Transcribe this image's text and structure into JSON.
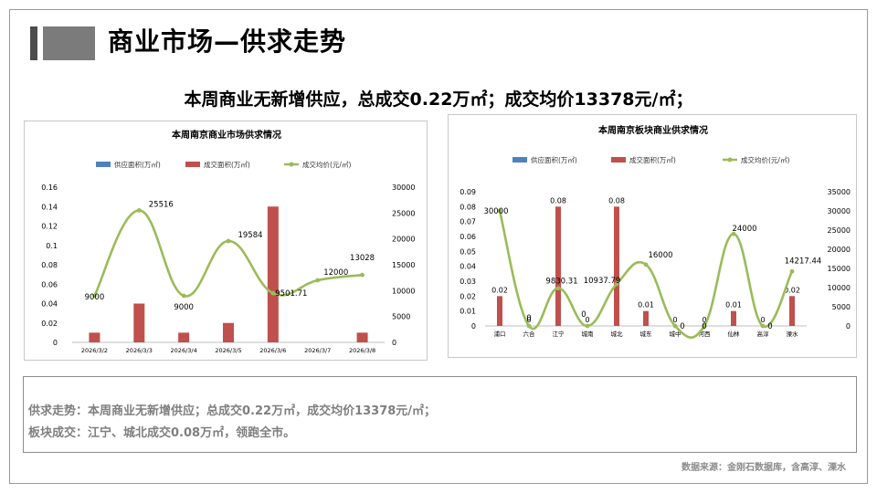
{
  "page": {
    "title": "商业市场—供求走势",
    "headline": "本周商业无新增供应，总成交0.22万㎡；成交均价13378元/㎡；",
    "notes": [
      "供求走势：本周商业无新增供应；总成交0.22万㎡，成交均价13378元/㎡；",
      "板块成交：江宁、城北成交0.08万㎡，领跑全市。"
    ],
    "source": "数据来源：金刚石数据库，含高淳、溧水"
  },
  "colors": {
    "supply": "#4f81bd",
    "deal": "#c0504d",
    "price": "#9bbb59"
  },
  "chart_data": [
    {
      "type": "bar",
      "title": "本周南京商业市场供求情况",
      "categories": [
        "2026/3/2",
        "2026/3/3",
        "2026/3/4",
        "2026/3/5",
        "2026/3/6",
        "2026/3/7",
        "2026/3/8"
      ],
      "series": [
        {
          "name": "供应面积(万㎡)",
          "type": "bar",
          "axis": "left",
          "values": [
            0,
            0,
            0,
            0,
            0,
            0,
            0
          ]
        },
        {
          "name": "成交面积(万㎡)",
          "type": "bar",
          "axis": "left",
          "values": [
            0.01,
            0.04,
            0.01,
            0.02,
            0.14,
            0,
            0.01
          ]
        },
        {
          "name": "成交均价(元/㎡)",
          "type": "line",
          "axis": "right",
          "values": [
            9000,
            25516,
            9000,
            19584,
            9501.71,
            12000,
            13028
          ]
        }
      ],
      "price_labels": [
        "9000",
        "25516",
        "9000",
        "19584",
        "9501.71",
        "12000",
        "13028"
      ],
      "ylim_left": [
        0,
        0.16
      ],
      "yticks_left": [
        "0",
        "0.02",
        "0.04",
        "0.06",
        "0.08",
        "0.1",
        "0.12",
        "0.14",
        "0.16"
      ],
      "ylim_right": [
        0,
        30000
      ],
      "yticks_right": [
        "0",
        "5000",
        "10000",
        "15000",
        "20000",
        "25000",
        "30000"
      ],
      "legend": "top"
    },
    {
      "type": "bar",
      "title": "本周南京板块商业供求情况",
      "categories": [
        "浦口",
        "六合",
        "江宁",
        "城南",
        "城北",
        "城东",
        "城中",
        "河西",
        "仙林",
        "高淳",
        "溧水"
      ],
      "series": [
        {
          "name": "供应面积(万㎡)",
          "type": "bar",
          "axis": "left",
          "values": [
            0,
            0,
            0,
            0,
            0,
            0,
            0,
            0,
            0,
            0,
            0
          ]
        },
        {
          "name": "成交面积(万㎡)",
          "type": "bar",
          "axis": "left",
          "values": [
            0.02,
            0,
            0.08,
            0,
            0.08,
            0.01,
            0,
            0,
            0.01,
            0,
            0.02
          ]
        },
        {
          "name": "成交均价(元/㎡)",
          "type": "line",
          "axis": "right",
          "values": [
            30000,
            0,
            9830.31,
            0,
            10937.79,
            16000,
            0,
            0,
            24000,
            0,
            14217.44
          ]
        }
      ],
      "deal_labels": [
        "0.02",
        "0",
        "0.08",
        "0",
        "0.08",
        "0.01",
        "0",
        "0",
        "0.01",
        "0",
        "0.02"
      ],
      "price_labels": [
        "30000",
        "0",
        "9830.31",
        "0",
        "10937.79",
        "16000",
        "0",
        "0",
        "24000",
        "0",
        "14217.44"
      ],
      "ylim_left": [
        0,
        0.09
      ],
      "yticks_left": [
        "0",
        "0.01",
        "0.02",
        "0.03",
        "0.04",
        "0.05",
        "0.06",
        "0.07",
        "0.08",
        "0.09"
      ],
      "ylim_right": [
        0,
        35000
      ],
      "yticks_right": [
        "0",
        "5000",
        "10000",
        "15000",
        "20000",
        "25000",
        "30000",
        "35000"
      ],
      "legend": "top"
    }
  ]
}
